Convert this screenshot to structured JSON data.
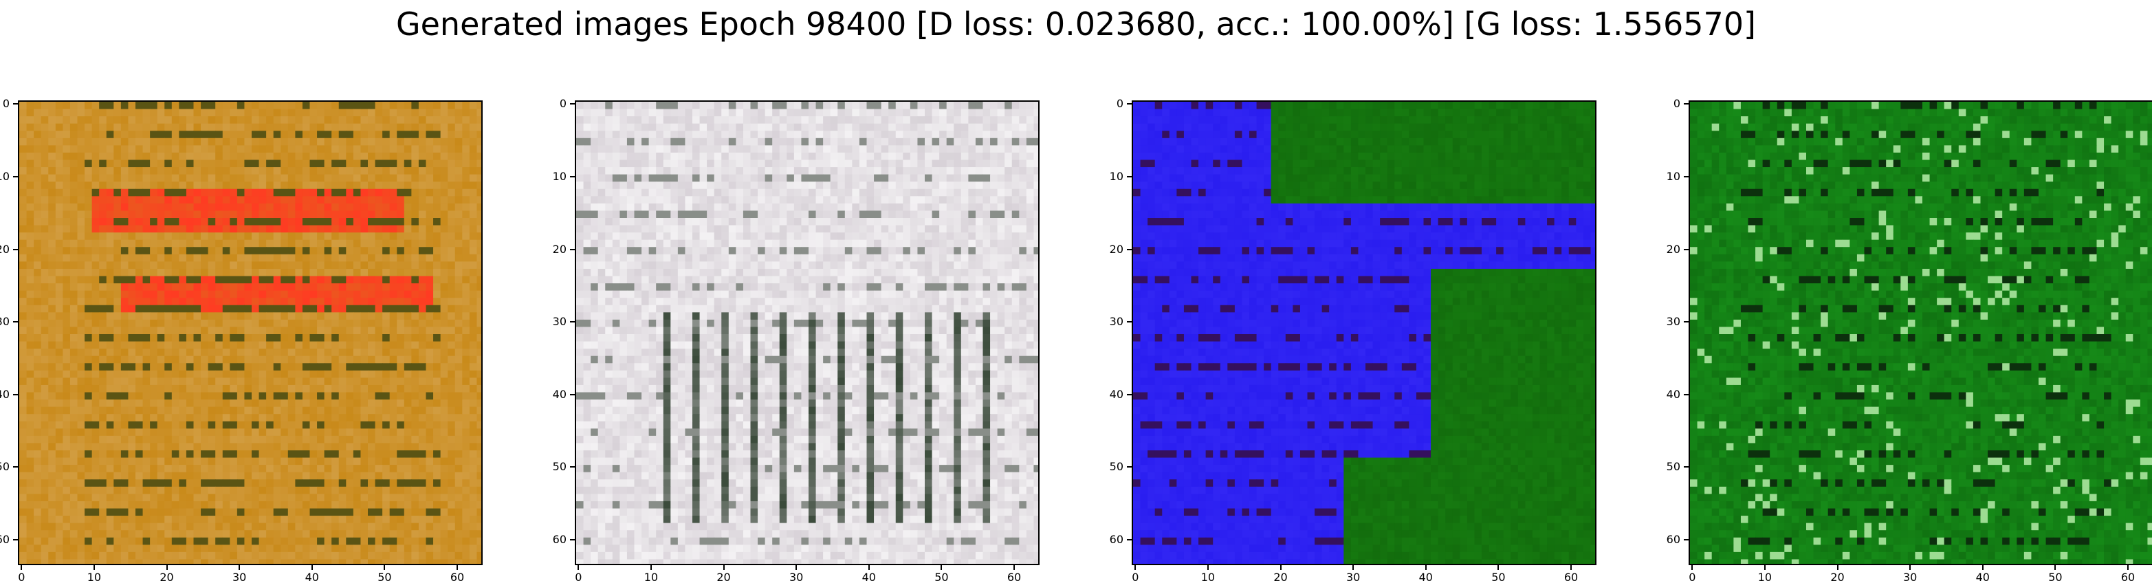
{
  "title": "Generated images Epoch 98400 [D loss: 0.023680, acc.: 100.00%] [G loss: 1.556570]",
  "panels": [
    {
      "name": "sample-1",
      "palette": "orange-red",
      "base": "#c98a1a",
      "accent": "#ff3b22",
      "dark": "#2a3d12",
      "light": "#e6c89a"
    },
    {
      "name": "sample-2",
      "palette": "white-gray",
      "base": "#d8d2d8",
      "accent": "#f4f0f4",
      "dark": "#3a4a3a",
      "light": "#ffffff"
    },
    {
      "name": "sample-3",
      "palette": "blue-green",
      "base": "#2a1ef0",
      "accent": "#167a10",
      "dark": "#3a0a20",
      "light": "#4a40ff"
    },
    {
      "name": "sample-4",
      "palette": "green",
      "base": "#168a18",
      "accent": "#0a5a0a",
      "dark": "#0a1a0a",
      "light": "#bff0b0"
    }
  ],
  "y_ticks": [
    "0",
    "10",
    "20",
    "30",
    "40",
    "50",
    "60"
  ],
  "x_ticks": [
    "0",
    "10",
    "20",
    "30",
    "40",
    "50",
    "60"
  ]
}
